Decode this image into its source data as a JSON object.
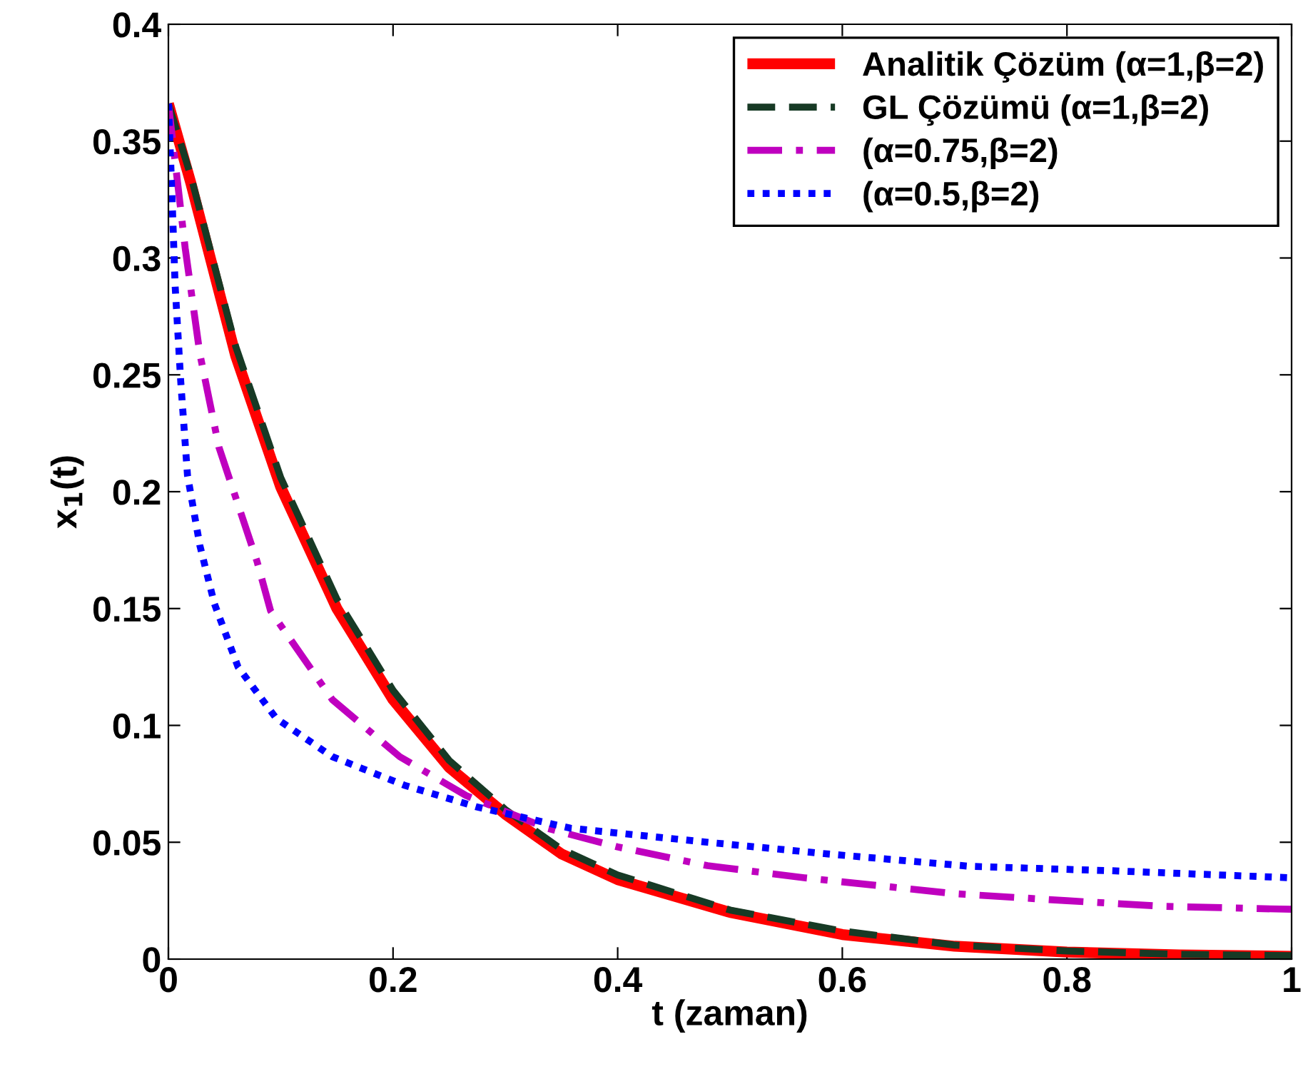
{
  "chart_data": {
    "type": "line",
    "xlabel": "t (zaman)",
    "ylabel": "x$_{1}$(t)",
    "xlim": [
      0,
      1
    ],
    "ylim": [
      0,
      0.4
    ],
    "xticks": [
      0,
      0.2,
      0.4,
      0.6,
      0.8,
      1
    ],
    "yticks": [
      0,
      0.05,
      0.1,
      0.15,
      0.2,
      0.25,
      0.3,
      0.35,
      0.4
    ],
    "grid": false,
    "legend": "top right",
    "series": [
      {
        "name": "Analitik Çözüm (α=1,β=2)",
        "color": "#ff0000",
        "line_style": "solid",
        "x": [
          0,
          0.02,
          0.06,
          0.1,
          0.15,
          0.2,
          0.25,
          0.3,
          0.35,
          0.4,
          0.5,
          0.6,
          0.7,
          0.8,
          0.9,
          1.0
        ],
        "values": [
          0.366,
          0.332,
          0.258,
          0.202,
          0.15,
          0.111,
          0.082,
          0.062,
          0.045,
          0.034,
          0.02,
          0.0105,
          0.0055,
          0.003,
          0.0018,
          0.0012
        ]
      },
      {
        "name": "GL Çözümü (α=1,β=2)",
        "color": "#173a25",
        "line_style": "dashed",
        "x": [
          0,
          0.02,
          0.06,
          0.1,
          0.15,
          0.2,
          0.25,
          0.3,
          0.35,
          0.4,
          0.5,
          0.6,
          0.7,
          0.8,
          0.9,
          1.0
        ],
        "values": [
          0.366,
          0.335,
          0.262,
          0.206,
          0.154,
          0.115,
          0.085,
          0.064,
          0.047,
          0.036,
          0.021,
          0.012,
          0.006,
          0.0035,
          0.002,
          0.0015
        ]
      },
      {
        "name": "(α=0.75,β=2)",
        "color": "#bf00bf",
        "line_style": "dashdot",
        "x": [
          0,
          0.015,
          0.028,
          0.045,
          0.079,
          0.091,
          0.146,
          0.206,
          0.265,
          0.337,
          0.4,
          0.48,
          0.566,
          0.7,
          0.8,
          0.885,
          1.0
        ],
        "values": [
          0.366,
          0.304,
          0.259,
          0.219,
          0.17,
          0.149,
          0.111,
          0.0866,
          0.07,
          0.056,
          0.048,
          0.04,
          0.0348,
          0.028,
          0.025,
          0.0226,
          0.0213
        ]
      },
      {
        "name": "(α=0.5,β=2)",
        "color": "#0000ff",
        "line_style": "dotted",
        "x": [
          0,
          0.003,
          0.006,
          0.011,
          0.017,
          0.028,
          0.041,
          0.062,
          0.096,
          0.146,
          0.21,
          0.274,
          0.358,
          0.48,
          0.587,
          0.714,
          0.84,
          1.0
        ],
        "values": [
          0.366,
          0.329,
          0.288,
          0.247,
          0.207,
          0.177,
          0.152,
          0.125,
          0.103,
          0.0866,
          0.0744,
          0.0652,
          0.056,
          0.05,
          0.045,
          0.0397,
          0.0378,
          0.0348
        ]
      }
    ]
  }
}
